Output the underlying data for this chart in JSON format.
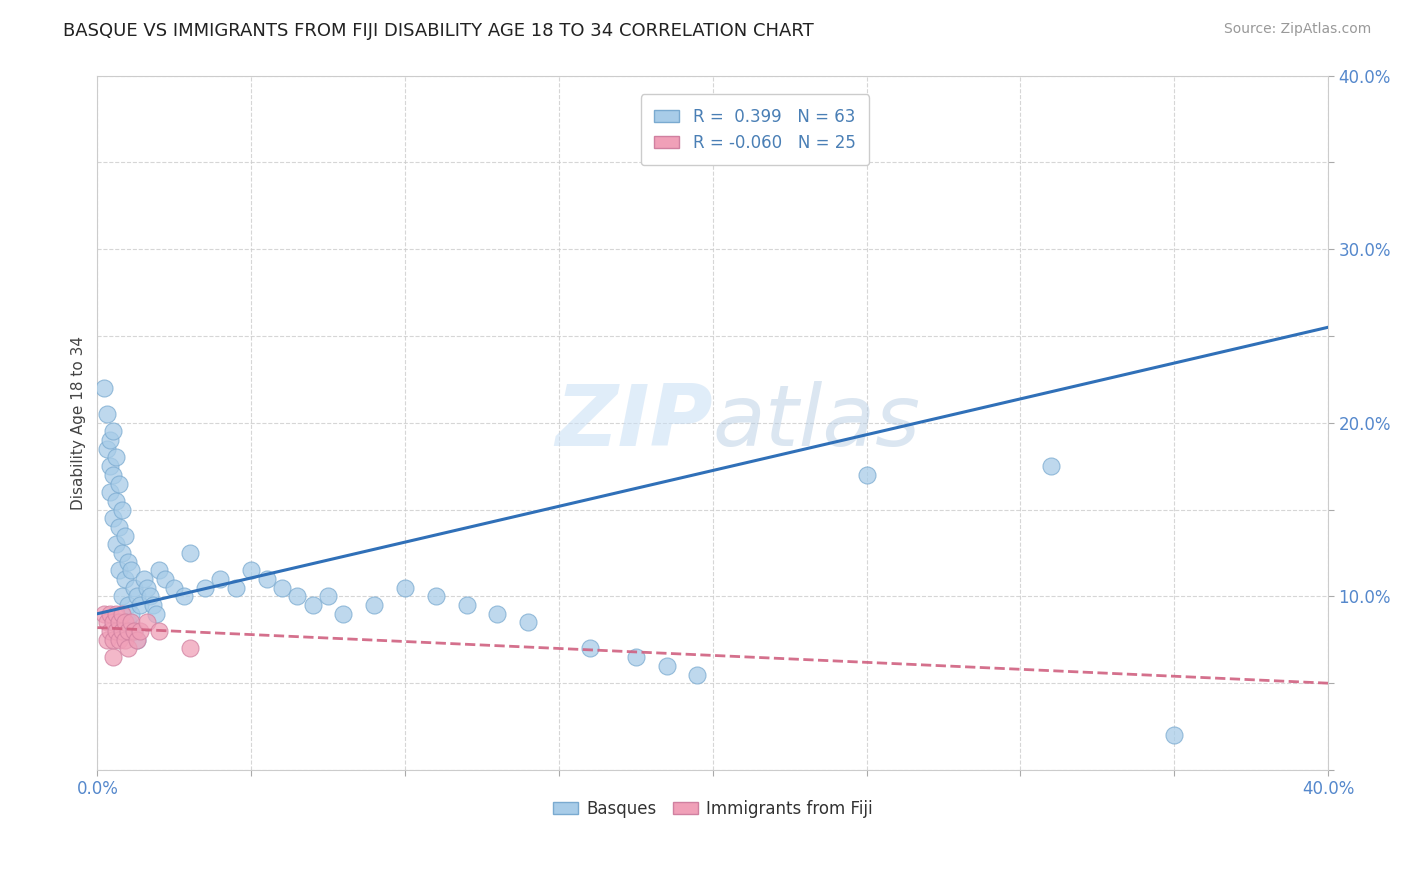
{
  "title": "BASQUE VS IMMIGRANTS FROM FIJI DISABILITY AGE 18 TO 34 CORRELATION CHART",
  "source": "Source: ZipAtlas.com",
  "ylabel": "Disability Age 18 to 34",
  "xlim": [
    0.0,
    0.4
  ],
  "ylim": [
    0.0,
    0.4
  ],
  "xticks": [
    0.0,
    0.05,
    0.1,
    0.15,
    0.2,
    0.25,
    0.3,
    0.35,
    0.4
  ],
  "yticks": [
    0.0,
    0.05,
    0.1,
    0.15,
    0.2,
    0.25,
    0.3,
    0.35,
    0.4
  ],
  "color_basque": "#a8cce8",
  "color_fiji": "#f0a0b8",
  "line_color_basque": "#3070b8",
  "line_color_fiji": "#d06080",
  "watermark": "ZIPatlas",
  "basque_line_start_y": 0.09,
  "basque_line_end_y": 0.255,
  "fiji_line_start_y": 0.082,
  "fiji_line_end_y": 0.05,
  "basque_x": [
    0.002,
    0.003,
    0.003,
    0.004,
    0.004,
    0.004,
    0.005,
    0.005,
    0.005,
    0.006,
    0.006,
    0.006,
    0.007,
    0.007,
    0.007,
    0.008,
    0.008,
    0.008,
    0.009,
    0.009,
    0.01,
    0.01,
    0.01,
    0.011,
    0.011,
    0.012,
    0.012,
    0.013,
    0.013,
    0.014,
    0.015,
    0.016,
    0.017,
    0.018,
    0.019,
    0.02,
    0.022,
    0.025,
    0.028,
    0.03,
    0.035,
    0.04,
    0.045,
    0.05,
    0.055,
    0.06,
    0.065,
    0.07,
    0.075,
    0.08,
    0.09,
    0.1,
    0.11,
    0.12,
    0.13,
    0.14,
    0.16,
    0.175,
    0.185,
    0.195,
    0.25,
    0.31,
    0.35
  ],
  "basque_y": [
    0.22,
    0.185,
    0.205,
    0.19,
    0.175,
    0.16,
    0.195,
    0.17,
    0.145,
    0.18,
    0.155,
    0.13,
    0.165,
    0.14,
    0.115,
    0.15,
    0.125,
    0.1,
    0.135,
    0.11,
    0.12,
    0.095,
    0.085,
    0.115,
    0.09,
    0.105,
    0.08,
    0.1,
    0.075,
    0.095,
    0.11,
    0.105,
    0.1,
    0.095,
    0.09,
    0.115,
    0.11,
    0.105,
    0.1,
    0.125,
    0.105,
    0.11,
    0.105,
    0.115,
    0.11,
    0.105,
    0.1,
    0.095,
    0.1,
    0.09,
    0.095,
    0.105,
    0.1,
    0.095,
    0.09,
    0.085,
    0.07,
    0.065,
    0.06,
    0.055,
    0.17,
    0.175,
    0.02
  ],
  "fiji_x": [
    0.002,
    0.003,
    0.003,
    0.004,
    0.004,
    0.005,
    0.005,
    0.005,
    0.006,
    0.006,
    0.007,
    0.007,
    0.008,
    0.008,
    0.009,
    0.009,
    0.01,
    0.01,
    0.011,
    0.012,
    0.013,
    0.014,
    0.016,
    0.02,
    0.03
  ],
  "fiji_y": [
    0.09,
    0.085,
    0.075,
    0.09,
    0.08,
    0.085,
    0.075,
    0.065,
    0.09,
    0.08,
    0.085,
    0.075,
    0.09,
    0.08,
    0.085,
    0.075,
    0.08,
    0.07,
    0.085,
    0.08,
    0.075,
    0.08,
    0.085,
    0.08,
    0.07
  ]
}
